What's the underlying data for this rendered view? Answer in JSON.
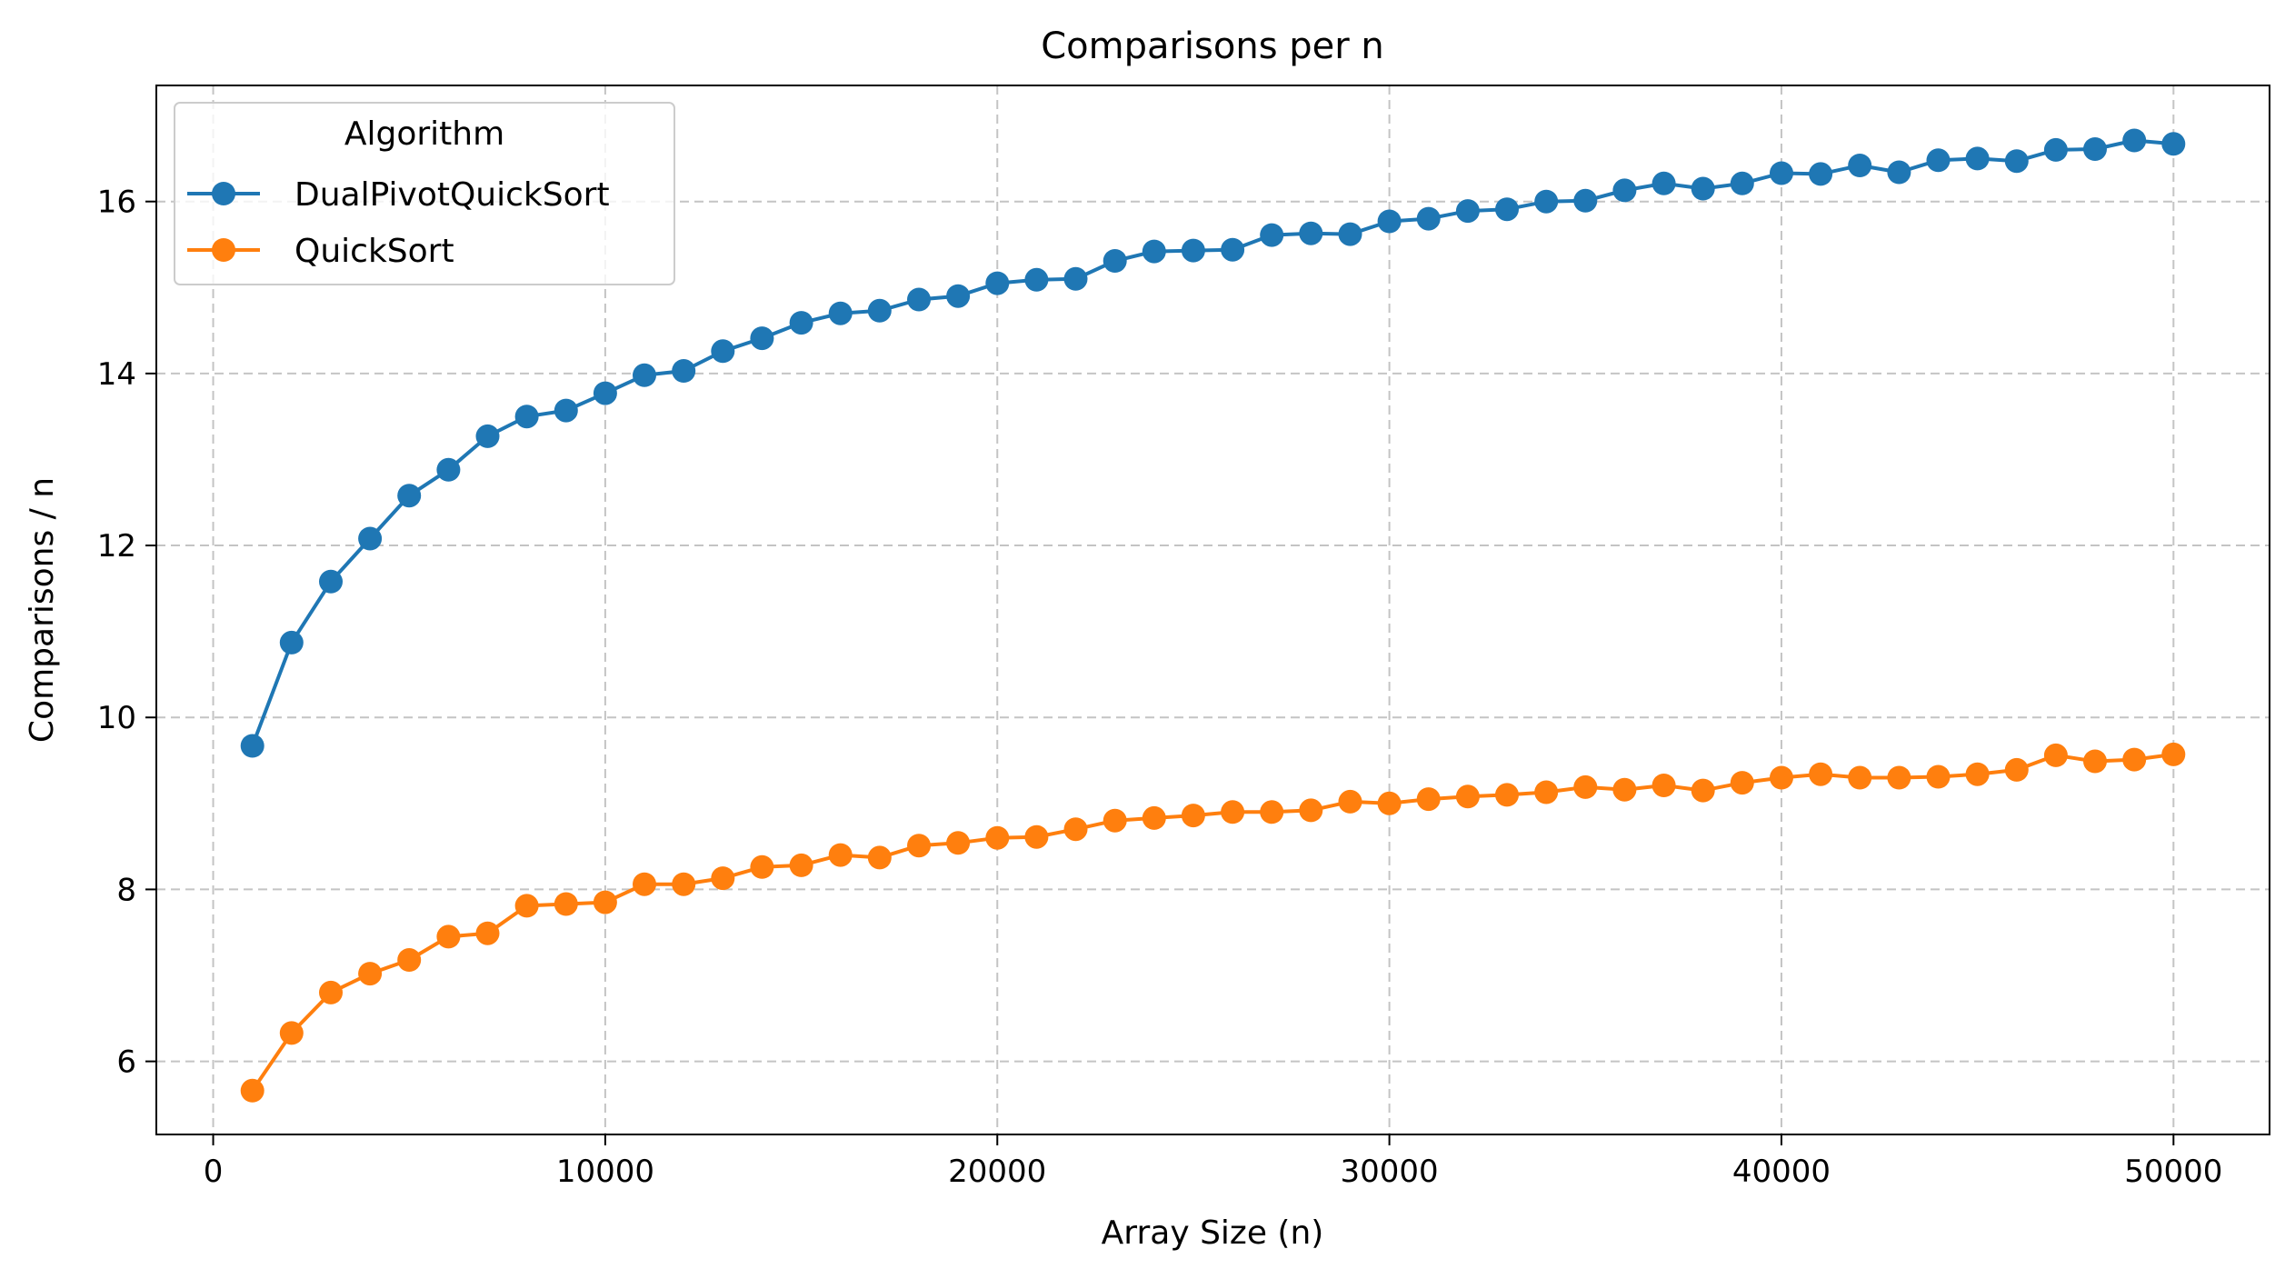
{
  "chart_data": {
    "type": "line",
    "title": "Comparisons per n",
    "xlabel": "Array Size (n)",
    "ylabel": "Comparisons / n",
    "xlim": [
      -1450,
      52450
    ],
    "ylim": [
      5.15,
      17.35
    ],
    "xticks": [
      0,
      10000,
      20000,
      30000,
      40000,
      50000
    ],
    "xtick_labels": [
      "0",
      "10000",
      "20000",
      "30000",
      "40000",
      "50000"
    ],
    "yticks": [
      6,
      8,
      10,
      12,
      14,
      16
    ],
    "ytick_labels": [
      "6",
      "8",
      "10",
      "12",
      "14",
      "16"
    ],
    "grid": true,
    "grid_style": "dashed",
    "legend": {
      "title": "Algorithm",
      "position": "top-left"
    },
    "x": [
      1000,
      2000,
      3000,
      4000,
      5000,
      6000,
      7000,
      8000,
      9000,
      10000,
      11000,
      12000,
      13000,
      14000,
      15000,
      16000,
      17000,
      18000,
      19000,
      20000,
      21000,
      22000,
      23000,
      24000,
      25000,
      26000,
      27000,
      28000,
      29000,
      30000,
      31000,
      32000,
      33000,
      34000,
      35000,
      36000,
      37000,
      38000,
      39000,
      40000,
      41000,
      42000,
      43000,
      44000,
      45000,
      46000,
      47000,
      48000,
      49000,
      50000
    ],
    "series": [
      {
        "name": "DualPivotQuickSort",
        "color": "#1f77b4",
        "marker": "circle",
        "values": [
          9.67,
          10.87,
          11.58,
          12.08,
          12.58,
          12.88,
          13.27,
          13.5,
          13.57,
          13.77,
          13.98,
          14.03,
          14.26,
          14.41,
          14.59,
          14.7,
          14.73,
          14.86,
          14.9,
          15.05,
          15.09,
          15.1,
          15.31,
          15.42,
          15.43,
          15.44,
          15.61,
          15.63,
          15.62,
          15.77,
          15.8,
          15.89,
          15.91,
          16.0,
          16.01,
          16.13,
          16.21,
          16.15,
          16.21,
          16.33,
          16.32,
          16.42,
          16.34,
          16.48,
          16.5,
          16.47,
          16.6,
          16.61,
          16.71,
          16.67
        ]
      },
      {
        "name": "QuickSort",
        "color": "#ff7f0e",
        "marker": "circle",
        "values": [
          5.66,
          6.33,
          6.8,
          7.02,
          7.18,
          7.45,
          7.49,
          7.81,
          7.83,
          7.85,
          8.06,
          8.06,
          8.13,
          8.26,
          8.28,
          8.4,
          8.37,
          8.51,
          8.54,
          8.6,
          8.61,
          8.7,
          8.8,
          8.83,
          8.86,
          8.9,
          8.9,
          8.92,
          9.02,
          9.0,
          9.05,
          9.08,
          9.1,
          9.13,
          9.19,
          9.16,
          9.21,
          9.15,
          9.24,
          9.3,
          9.34,
          9.3,
          9.3,
          9.31,
          9.34,
          9.39,
          9.56,
          9.49,
          9.51,
          9.57
        ]
      }
    ]
  }
}
